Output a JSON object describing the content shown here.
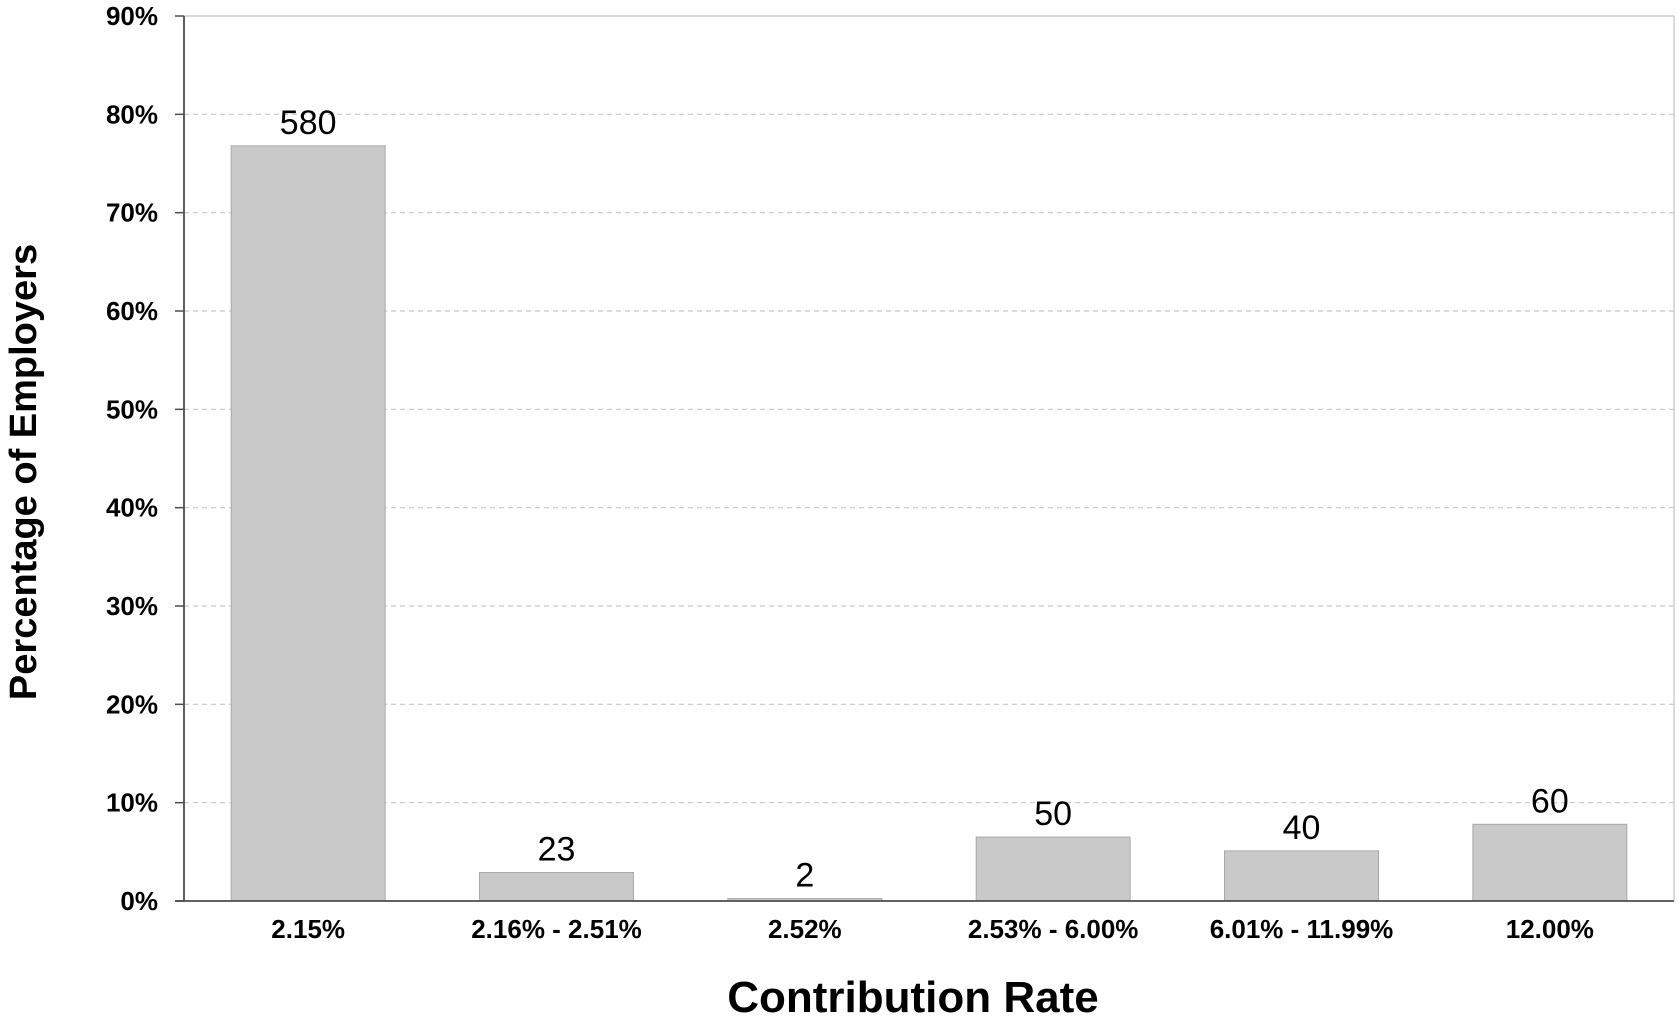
{
  "chart_data": {
    "type": "bar",
    "categories": [
      "2.15%",
      "2.16% - 2.51%",
      "2.52%",
      "2.53% - 6.00%",
      "6.01% - 11.99%",
      "12.00%"
    ],
    "values": [
      76.8,
      2.9,
      0.25,
      6.5,
      5.1,
      7.8
    ],
    "data_labels": [
      "580",
      "23",
      "2",
      "50",
      "40",
      "60"
    ],
    "xlabel": "Contribution Rate",
    "ylabel": "Percentage of Employers",
    "ylim": [
      0,
      90
    ],
    "ytick_step": 10,
    "ytick_suffix": "%",
    "grid": true,
    "grid_style": "dashed",
    "legend": "none",
    "colors": {
      "bar_fill": "#c9c9c9",
      "bar_stroke": "#a9a9a9",
      "axis": "#4d4d4d",
      "grid": "#c8c8c8",
      "frame": "#cfcfcf"
    }
  }
}
